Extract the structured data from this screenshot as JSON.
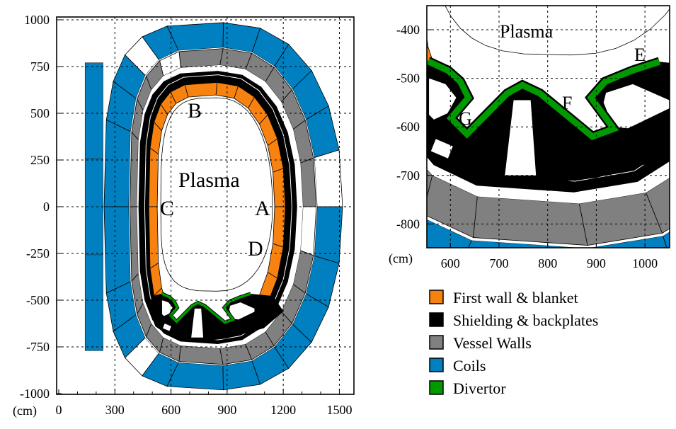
{
  "main_plot": {
    "x_unit": "(cm)",
    "x_ticks": [
      "0",
      "300",
      "600",
      "900",
      "1200",
      "1500"
    ],
    "y_ticks": [
      "1000",
      "750",
      "500",
      "250",
      "0",
      "-250",
      "-500",
      "-750",
      "-1000"
    ],
    "labels": {
      "plasma": "Plasma",
      "A": "A",
      "B": "B",
      "C": "C",
      "D": "D"
    }
  },
  "inset_plot": {
    "x_unit": "(cm)",
    "x_ticks": [
      "600",
      "700",
      "800",
      "900",
      "1000"
    ],
    "y_ticks": [
      "-400",
      "-500",
      "-600",
      "-700",
      "-800"
    ],
    "labels": {
      "plasma": "Plasma",
      "E": "E",
      "F": "F",
      "G": "G"
    }
  },
  "legend": [
    {
      "label": "First wall & blanket",
      "color": "#f7820f"
    },
    {
      "label": "Shielding & backplates",
      "color": "#000000"
    },
    {
      "label": "Vessel Walls",
      "color": "#808080"
    },
    {
      "label": "Coils",
      "color": "#0080c0"
    },
    {
      "label": "Divertor",
      "color": "#009a00"
    }
  ]
}
